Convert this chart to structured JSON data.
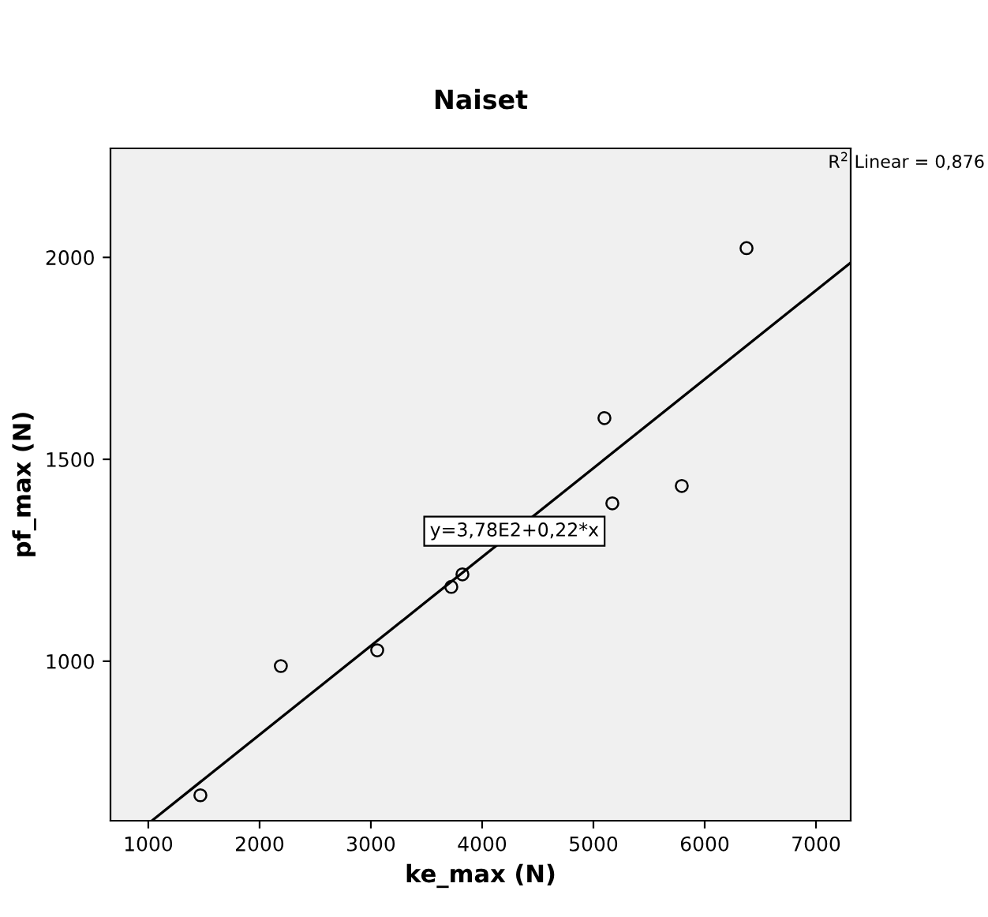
{
  "chart_data": {
    "type": "scatter",
    "title": "Naiset",
    "xlabel": "ke_max (N)",
    "ylabel": "pf_max (N)",
    "x": [
      1468,
      2191,
      3057,
      3723,
      3823,
      5099,
      5170,
      5794,
      6376
    ],
    "series": [
      {
        "color": "#000000",
        "marker": "circle",
        "values": [
          668,
          988,
          1027,
          1184,
          1215,
          1602,
          1391,
          1434,
          2023
        ]
      },
      {
        "type": "line",
        "color": "#000000",
        "marker": "none",
        "line_style": "solid",
        "x": [
          1032,
          7312
        ],
        "values": [
          605,
          1987
        ]
      }
    ],
    "xlim": [
      660,
      7312
    ],
    "ylim": [
      605,
      2270
    ],
    "xticks": [
      1000,
      2000,
      3000,
      4000,
      5000,
      6000,
      7000
    ],
    "yticks": [
      1000,
      1500,
      2000
    ],
    "grid": false,
    "annotations": [
      {
        "text": "y=3,78E2+0,22*x",
        "x": 4290,
        "y": 1322
      },
      "R$^{2}$ Linear = 0,876"
    ]
  }
}
